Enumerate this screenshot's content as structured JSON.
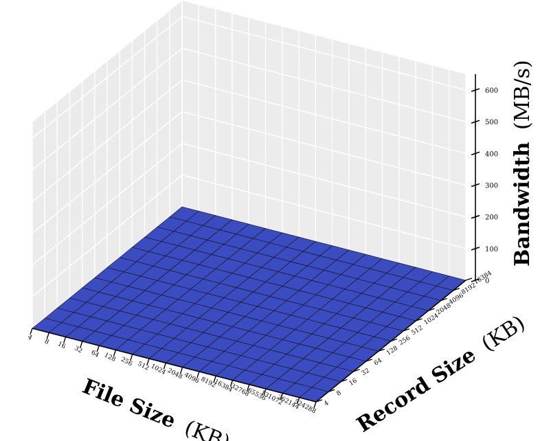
{
  "chart_data": {
    "type": "surface3d",
    "title": "",
    "xlabel": {
      "bold": "File Size",
      "unit": "(KB)"
    },
    "ylabel": {
      "bold": "Record Size",
      "unit": "(KB)"
    },
    "zlabel": {
      "bold": "Bandwidth",
      "unit": "(MB/s)"
    },
    "x_ticks": [
      "4",
      "8",
      "16",
      "32",
      "64",
      "128",
      "256",
      "512",
      "1024",
      "2048",
      "4096",
      "8192",
      "16384",
      "32768",
      "65536",
      "131072",
      "262144",
      "524288"
    ],
    "y_ticks": [
      "4",
      "8",
      "16",
      "32",
      "64",
      "128",
      "256",
      "512",
      "1024",
      "2048",
      "4096",
      "8192",
      "16384"
    ],
    "z_ticks": [
      "0",
      "100",
      "200",
      "300",
      "400",
      "500",
      "600"
    ],
    "zlim": [
      0,
      650
    ],
    "grid": true,
    "colormap": "coolwarm",
    "z": [
      [
        0,
        0,
        0,
        0,
        0,
        0,
        0,
        0,
        0,
        0,
        0,
        0,
        0
      ],
      [
        0,
        0,
        0,
        0,
        0,
        0,
        0,
        0,
        0,
        0,
        0,
        0,
        0
      ],
      [
        0,
        0,
        0,
        0,
        0,
        0,
        0,
        0,
        0,
        0,
        0,
        0,
        0
      ],
      [
        0,
        0,
        0,
        0,
        0,
        0,
        0,
        0,
        0,
        0,
        0,
        0,
        0
      ],
      [
        0,
        0,
        0,
        0,
        0,
        0,
        0,
        0,
        0,
        0,
        0,
        0,
        0
      ],
      [
        0,
        0,
        0,
        0,
        0,
        0,
        0,
        0,
        0,
        0,
        0,
        0,
        0
      ],
      [
        0,
        0,
        0,
        0,
        0,
        0,
        0,
        0,
        0,
        0,
        0,
        0,
        0
      ],
      [
        0,
        0,
        0,
        0,
        0,
        0,
        0,
        0,
        0,
        0,
        0,
        0,
        0
      ],
      [
        0,
        0,
        0,
        0,
        0,
        0,
        0,
        0,
        0,
        0,
        0,
        0,
        0
      ],
      [
        0,
        0,
        0,
        0,
        0,
        0,
        0,
        0,
        0,
        0,
        0,
        0,
        0
      ],
      [
        0,
        0,
        0,
        0,
        0,
        0,
        0,
        0,
        0,
        0,
        0,
        0,
        0
      ],
      [
        0,
        0,
        0,
        0,
        0,
        0,
        0,
        0,
        0,
        0,
        0,
        0,
        0
      ],
      [
        0,
        0,
        0,
        0,
        0,
        0,
        0,
        0,
        0,
        0,
        0,
        0,
        0
      ],
      [
        0,
        0,
        0,
        0,
        0,
        0,
        0,
        0,
        0,
        0,
        0,
        0,
        0
      ],
      [
        0,
        0,
        0,
        0,
        0,
        0,
        0,
        0,
        0,
        0,
        0,
        0,
        0
      ],
      [
        0,
        0,
        0,
        0,
        0,
        0,
        0,
        0,
        0,
        0,
        0,
        0,
        0
      ],
      [
        0,
        0,
        0,
        0,
        0,
        0,
        0,
        0,
        0,
        0,
        0,
        0,
        0
      ],
      [
        0,
        0,
        0,
        0,
        0,
        0,
        0,
        0,
        0,
        0,
        0,
        0,
        0
      ]
    ]
  }
}
